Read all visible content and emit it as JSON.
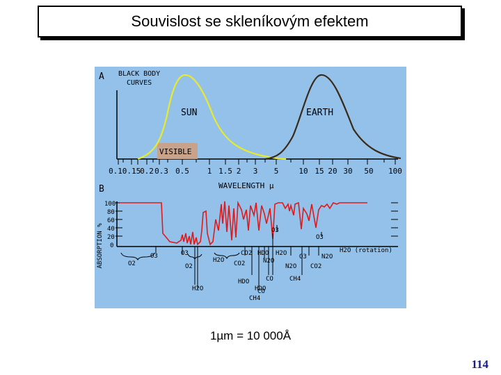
{
  "slide": {
    "title": "Souvislost se skleníkovým efektem",
    "caption": "1µm = 10 000Å",
    "page_number": "114"
  },
  "colors": {
    "panel_bg": "#93c1ea",
    "sun_curve": "#e8ea2a",
    "earth_curve": "#3a2a1a",
    "absorption_curve": "#e01a1a",
    "visible_band": "#c8a28a"
  },
  "panel_a": {
    "letter": "A",
    "heading_line1": "BLACK BODY",
    "heading_line2": "CURVES",
    "sun_label": "SUN",
    "earth_label": "EARTH",
    "visible_label": "VISIBLE"
  },
  "wavelength_axis": {
    "ticks": [
      "0.1",
      "0.15",
      "0.2",
      "0.3",
      "0.5",
      "1",
      "1.5",
      "2",
      "3",
      "5",
      "10",
      "15",
      "20",
      "30",
      "50",
      "100"
    ],
    "label": "WAVELENGTH µ"
  },
  "panel_b": {
    "letter": "B",
    "ylabel": "ABSORPTION %",
    "yticks": [
      "100",
      "80",
      "60",
      "40",
      "20",
      "0"
    ],
    "gases": {
      "o2_left": "O2",
      "o3_left": "O3",
      "o3_a": "O3",
      "o2_mid": "O2",
      "h2o_a": "H2O",
      "h2o_b": "H2O",
      "co2_a": "CO2",
      "co2_b": "CO2",
      "hdo_a": "HDO",
      "n2o_a": "N2O",
      "h2o_c": "H2O",
      "co_a": "CO",
      "n2o_b": "N2O",
      "ch4_a": "CH4",
      "o3_b": "O3",
      "o3_c": "O3",
      "o3_d": "O3",
      "n2o_c": "N2O",
      "co2_c": "CO2",
      "h2o_rot": "H2O (rotation)",
      "hdo_b": "HDO",
      "ch4_b": "CH4",
      "co_b": "CO",
      "hdo_c": "HDO"
    }
  }
}
